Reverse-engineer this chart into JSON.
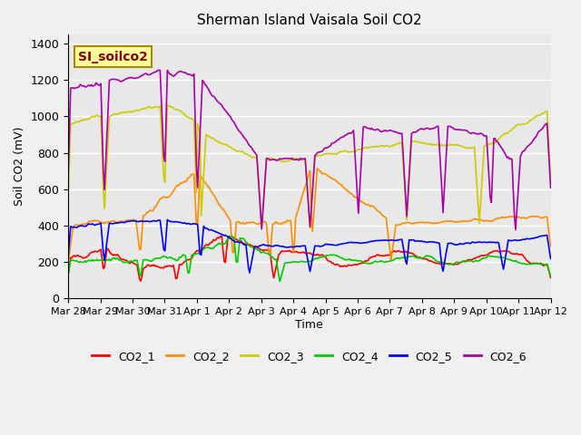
{
  "title": "Sherman Island Vaisala Soil CO2",
  "ylabel": "Soil CO2 (mV)",
  "xlabel": "Time",
  "legend_label": "SI_soilco2",
  "series_names": [
    "CO2_1",
    "CO2_2",
    "CO2_3",
    "CO2_4",
    "CO2_5",
    "CO2_6"
  ],
  "series_colors": [
    "#ff0000",
    "#ff8c00",
    "#cccc00",
    "#00cc00",
    "#0000ff",
    "#aa00aa"
  ],
  "xtick_labels": [
    "Mar 28",
    "Mar 29",
    "Mar 30",
    "Mar 31",
    "Apr 1",
    "Apr 2",
    "Apr 3",
    "Apr 4",
    "Apr 5",
    "Apr 6",
    "Apr 7",
    "Apr 8",
    "Apr 9",
    "Apr 10",
    "Apr 11",
    "Apr 12"
  ],
  "ylim": [
    0,
    1450
  ],
  "yticks": [
    0,
    200,
    400,
    600,
    800,
    1000,
    1200,
    1400
  ],
  "background_color": "#f0f0f0",
  "plot_bg_color": "#e8e8e8",
  "grid_color": "#ffffff",
  "n_points": 400,
  "linewidth": 1.2
}
